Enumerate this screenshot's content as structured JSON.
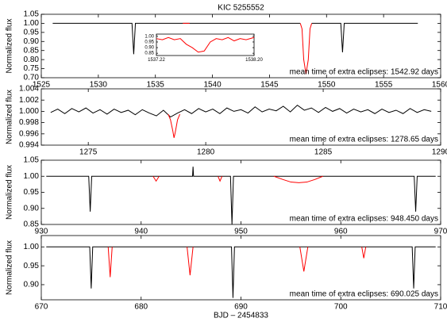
{
  "chart_data": [
    {
      "type": "line",
      "title": "KIC 5255552",
      "y_label": "Normalized flux",
      "annotation": "mean time of extra eclipses: 1542.92 days",
      "annotation_color": "#ff0000",
      "xlim": [
        1525,
        1560
      ],
      "xticks": [
        1525,
        1530,
        1535,
        1540,
        1545,
        1550,
        1555,
        1560
      ],
      "ylim": [
        0.7,
        1.05
      ],
      "yticks": [
        {
          "value": 0.7,
          "label": "0.70"
        },
        {
          "value": 0.75,
          "label": "0.75"
        },
        {
          "value": 0.8,
          "label": "0.80"
        },
        {
          "value": 0.85,
          "label": "0.85"
        },
        {
          "value": 0.9,
          "label": "0.90"
        },
        {
          "value": 0.95,
          "label": "0.95"
        },
        {
          "value": 1.0,
          "label": "1.00"
        },
        {
          "value": 1.05,
          "label": "1.05"
        }
      ],
      "series": [
        {
          "color": "#000000",
          "x": [
            1526,
            1532.95,
            1533.1,
            1533.25,
            1547.7,
            1548.2,
            1548.7,
            1551.25,
            1551.4,
            1551.55,
            1558
          ],
          "values": [
            1,
            1,
            0.83,
            1,
            1,
            null,
            1,
            1,
            0.84,
            1,
            1
          ]
        },
        {
          "color": "#ff0000",
          "x": [
            1537.4,
            1538.0,
            1538.1,
            1547.7,
            1547.85,
            1548.0,
            1548.2,
            1548.4,
            1548.55,
            1548.7
          ],
          "values": [
            1,
            1,
            null,
            1,
            0.97,
            0.8,
            0.72,
            0.8,
            0.97,
            1
          ]
        }
      ]
    },
    {
      "type": "line",
      "y_label": "Normalized flux",
      "annotation": "mean time of extra eclipses: 1278.65 days",
      "annotation_color": "#ff0000",
      "xlim": [
        1273,
        1290
      ],
      "xticks": [
        1275,
        1280,
        1285,
        1290
      ],
      "ylim": [
        0.994,
        1.004
      ],
      "yticks": [
        0.994,
        0.996,
        0.998,
        {
          "value": 1.0,
          "label": "1.000"
        },
        1.002,
        1.004
      ],
      "series": [
        {
          "color": "#000000",
          "x": [
            1273.4,
            1273.7,
            1274.0,
            1274.3,
            1274.6,
            1274.9,
            1275.2,
            1275.5,
            1275.8,
            1276.1,
            1276.4,
            1276.7,
            1277.0,
            1277.3,
            1277.6,
            1277.9,
            1278.2,
            1278.5,
            1278.8,
            1279.1,
            1279.4,
            1279.7,
            1280.0,
            1280.3,
            1280.6,
            1280.9,
            1281.2,
            1281.5,
            1281.8,
            1282.1,
            1282.4,
            1282.7,
            1283.0,
            1283.3,
            1283.6,
            1283.9,
            1284.2,
            1284.5,
            1284.8,
            1285.1,
            1285.4,
            1285.7,
            1286.0,
            1286.3,
            1286.6,
            1286.9,
            1287.2,
            1287.5,
            1287.8,
            1288.1,
            1288.4,
            1288.7,
            1289.0,
            1289.3,
            1289.6
          ],
          "values": [
            0.9998,
            1.0004,
            0.9996,
            1.0005,
            0.9999,
            1.0006,
            0.9997,
            1.0003,
            0.9995,
            1.0004,
            0.9998,
            1.0002,
            0.9994,
            1.0003,
            0.9997,
            0.9992,
            1.0002,
            0.999,
            0.9997,
            1.0003,
            0.9996,
            1.0005,
            0.9999,
            1.0004,
            0.9996,
            1.0006,
            1.0,
            1.0003,
            0.9997,
            1.0008,
            0.9999,
            1.0004,
            1.0001,
            1.0009,
            0.9999,
            1.0011,
            1.0002,
            1.0006,
            0.9998,
            1.0007,
            1.0,
            1.0005,
            0.9997,
            1.0004,
            0.9999,
            1.0003,
            0.9996,
            1.0004,
            0.9998,
            1.0002,
            0.9996,
            1.0005,
            0.9998,
            1.0003,
            1.0
          ]
        },
        {
          "color": "#ff0000",
          "x": [
            1278.4,
            1278.5,
            1278.6,
            1278.65,
            1278.7,
            1278.8,
            1278.9
          ],
          "values": [
            0.9995,
            0.9985,
            0.9965,
            0.9953,
            0.9962,
            0.9985,
            0.9995
          ]
        }
      ]
    },
    {
      "type": "line",
      "y_label": "Normalized flux",
      "annotation": "mean time of extra eclipses: 948.450 days",
      "annotation_color": "#ff0000",
      "xlim": [
        930,
        970
      ],
      "xticks": [
        930,
        940,
        950,
        960,
        970
      ],
      "ylim": [
        0.85,
        1.05
      ],
      "yticks": [
        0.85,
        {
          "value": 0.9,
          "label": "0.90"
        },
        0.95,
        {
          "value": 1.0,
          "label": "1.00"
        },
        1.05
      ],
      "series": [
        {
          "color": "#000000",
          "x": [
            930.5,
            934.75,
            934.9,
            935.05,
            945.15,
            945.2,
            945.25,
            948.95,
            949.1,
            949.25,
            967.35,
            967.5,
            967.65,
            969.5
          ],
          "values": [
            1,
            1,
            0.89,
            1,
            1,
            1.03,
            1,
            1,
            0.85,
            1,
            1,
            0.89,
            1,
            1
          ]
        },
        {
          "color": "#ff0000",
          "x": [
            941.2,
            941.5,
            941.8,
            941.9,
            947.7,
            947.9,
            948.1,
            948.2,
            953.3,
            954.2,
            955.0,
            955.8,
            956.6,
            957.4,
            958.2
          ],
          "values": [
            1,
            0.985,
            1,
            null,
            1,
            0.985,
            1,
            null,
            1,
            0.99,
            0.982,
            0.98,
            0.982,
            0.99,
            1
          ]
        }
      ]
    },
    {
      "type": "line",
      "y_label": "Normalized flux",
      "x_label": "BJD – 2454833",
      "annotation": "mean time of extra eclipses: 690.025 days",
      "annotation_color": "#ff0000",
      "xlim": [
        670,
        710
      ],
      "xticks": [
        670,
        680,
        690,
        700,
        710
      ],
      "ylim": [
        0.86,
        1.03
      ],
      "yticks": [
        {
          "value": 0.9,
          "label": "0.90"
        },
        0.95,
        {
          "value": 1.0,
          "label": "1.00"
        }
      ],
      "series": [
        {
          "color": "#000000",
          "x": [
            670.5,
            674.85,
            675.0,
            675.15,
            689.05,
            689.2,
            689.35,
            707.15,
            707.3,
            707.45,
            709.5
          ],
          "values": [
            1,
            1,
            0.89,
            1,
            1,
            0.865,
            1,
            1,
            0.89,
            1,
            1
          ]
        },
        {
          "color": "#ff0000",
          "x": [
            676.7,
            676.9,
            677.1,
            677.2,
            684.6,
            684.9,
            685.2,
            685.3,
            695.9,
            696.3,
            696.7,
            696.8,
            702.1,
            702.3,
            702.5
          ],
          "values": [
            1,
            0.92,
            1,
            null,
            1,
            0.925,
            1,
            null,
            1,
            0.935,
            1,
            null,
            1,
            0.97,
            1
          ]
        }
      ]
    },
    {
      "type": "line",
      "xlim": [
        1537.22,
        1538.2
      ],
      "xticks": [
        1537.22,
        {
          "value": 1538.2,
          "label": "1538.20"
        }
      ],
      "ylim": [
        0.83,
        1.02
      ],
      "yticks": [
        {
          "value": 0.85,
          "label": "0.85"
        },
        {
          "value": 0.9,
          "label": "0.90"
        },
        {
          "value": 0.95,
          "label": "0.95"
        },
        {
          "value": 1.0,
          "label": "1.00"
        }
      ],
      "series": [
        {
          "color": "#ff0000",
          "x": [
            1537.22,
            1537.28,
            1537.34,
            1537.4,
            1537.46,
            1537.52,
            1537.58,
            1537.64,
            1537.7,
            1537.76,
            1537.82,
            1537.88,
            1537.94,
            1538.0,
            1538.06,
            1538.12,
            1538.2
          ],
          "values": [
            0.98,
            0.97,
            0.99,
            0.97,
            0.98,
            0.93,
            0.9,
            0.86,
            0.87,
            0.95,
            0.98,
            0.97,
            0.99,
            0.96,
            0.98,
            0.97,
            0.99
          ]
        }
      ]
    }
  ]
}
